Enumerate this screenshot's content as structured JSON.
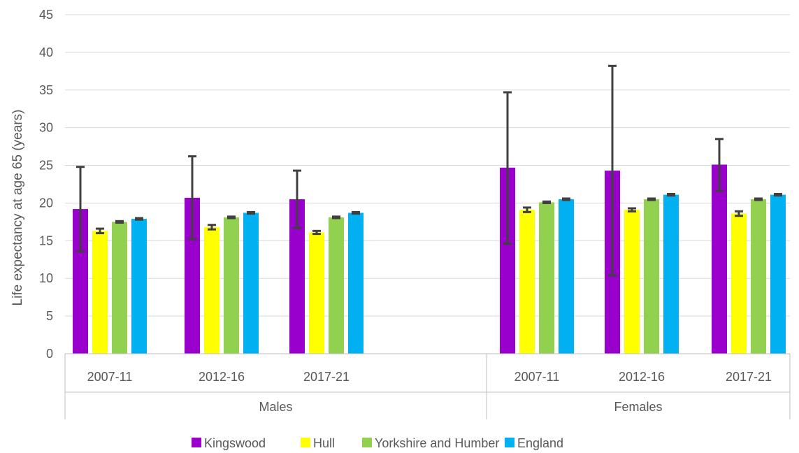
{
  "chart_data": {
    "type": "bar",
    "ylabel": "Life expectancy at age 65 (years)",
    "xlabel": "",
    "ylim": [
      0,
      45
    ],
    "yticks": [
      0,
      5,
      10,
      15,
      20,
      25,
      30,
      35,
      40,
      45
    ],
    "grid": true,
    "legend_position": "bottom",
    "groups": [
      {
        "label": "Males",
        "categories": [
          "2007-11",
          "2012-16",
          "2017-21"
        ]
      },
      {
        "label": "Females",
        "categories": [
          "2007-11",
          "2012-16",
          "2017-21"
        ]
      }
    ],
    "categories": [
      "Males 2007-11",
      "Males 2012-16",
      "Males 2017-21",
      "Females 2007-11",
      "Females 2012-16",
      "Females 2017-21"
    ],
    "series": [
      {
        "name": "Kingswood",
        "color": "#9900CC",
        "values": [
          19.2,
          20.7,
          20.5,
          24.7,
          24.3,
          25.1
        ],
        "error_low": [
          13.6,
          15.2,
          16.7,
          14.6,
          10.4,
          21.6
        ],
        "error_high": [
          24.8,
          26.2,
          24.3,
          34.7,
          38.2,
          28.5
        ]
      },
      {
        "name": "Hull",
        "color": "#FFFF00",
        "values": [
          16.3,
          16.8,
          16.1,
          19.1,
          19.1,
          18.6
        ],
        "error_low": [
          16.0,
          16.5,
          15.9,
          18.8,
          18.9,
          18.3
        ],
        "error_high": [
          16.6,
          17.1,
          16.3,
          19.4,
          19.3,
          18.9
        ]
      },
      {
        "name": "Yorkshire and Humber",
        "color": "#92D050",
        "values": [
          17.5,
          18.1,
          18.1,
          20.1,
          20.5,
          20.5
        ],
        "error_low": [
          17.4,
          18.0,
          18.0,
          20.0,
          20.4,
          20.4
        ],
        "error_high": [
          17.6,
          18.2,
          18.2,
          20.2,
          20.6,
          20.6
        ]
      },
      {
        "name": "England",
        "color": "#00B0F0",
        "values": [
          17.9,
          18.7,
          18.7,
          20.5,
          21.1,
          21.1
        ],
        "error_low": [
          17.8,
          18.6,
          18.6,
          20.4,
          21.0,
          21.0
        ],
        "error_high": [
          18.0,
          18.8,
          18.8,
          20.6,
          21.2,
          21.2
        ]
      }
    ]
  }
}
